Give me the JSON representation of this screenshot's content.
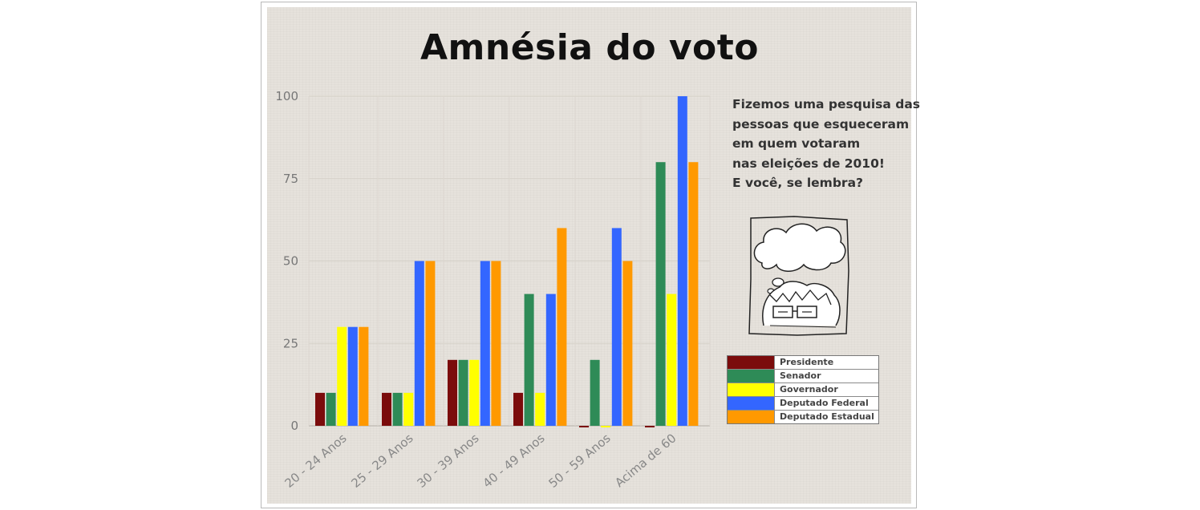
{
  "chart_data": {
    "type": "bar",
    "title": "Amnésia do voto",
    "categories": [
      "20 - 24 Anos",
      "25 - 29 Anos",
      "30 - 39 Anos",
      "40 - 49 Anos",
      "50 - 59 Anos",
      "Acima de 60"
    ],
    "series": [
      {
        "name": "Presidente",
        "color": "#7b0c0c",
        "values": [
          10,
          10,
          20,
          10,
          0,
          0
        ]
      },
      {
        "name": "Senador",
        "color": "#2e8b57",
        "values": [
          10,
          10,
          20,
          40,
          20,
          80
        ]
      },
      {
        "name": "Governador",
        "color": "#ffff00",
        "values": [
          30,
          10,
          20,
          10,
          0,
          40
        ]
      },
      {
        "name": "Deputado Federal",
        "color": "#3366ff",
        "values": [
          30,
          50,
          50,
          40,
          60,
          100
        ]
      },
      {
        "name": "Deputado Estadual",
        "color": "#ff9900",
        "values": [
          30,
          50,
          50,
          60,
          50,
          80
        ]
      }
    ],
    "yticks": [
      0,
      25,
      50,
      75,
      100
    ],
    "ylim": [
      0,
      100
    ],
    "grid": true,
    "legend": "right"
  },
  "note": {
    "lines": [
      "Fizemos uma pesquisa das",
      "pessoas que esqueceram",
      "em quem votaram",
      "nas eleições de 2010!",
      "E você, se lembra?"
    ]
  }
}
